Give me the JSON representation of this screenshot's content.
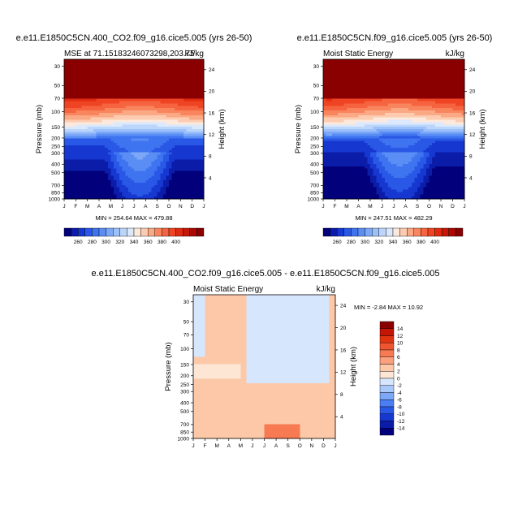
{
  "chart_data": [
    {
      "type": "heatmap",
      "title": "e.e11.E1850C5CN.400_CO2.f09_g16.cice5.005 (yrs 26-50)",
      "left_subtitle": "MSE at 71.15183246073298,203.75",
      "right_subtitle": "kJ/kg",
      "ylabel": "Pressure (mb)",
      "ylabel_right": "Height (km)",
      "x_ticks": [
        "J",
        "F",
        "M",
        "A",
        "M",
        "J",
        "J",
        "A",
        "S",
        "O",
        "N",
        "D",
        "J"
      ],
      "y_ticks": [
        "30",
        "50",
        "70",
        "100",
        "150",
        "200",
        "250",
        "300",
        "400",
        "500",
        "700",
        "850",
        "1000"
      ],
      "y_ticks_right": [
        "24",
        "20",
        "16",
        "12",
        "8",
        "4"
      ],
      "minmax_label": "MIN = 254.64 MAX = 479.88",
      "min": 254.64,
      "max": 479.88,
      "colorbar_labels": [
        "260",
        "280",
        "300",
        "320",
        "340",
        "360",
        "380",
        "400"
      ],
      "colorbar_orientation": "horizontal"
    },
    {
      "type": "heatmap",
      "title": "e.e11.E1850C5CN.f09_g16.cice5.005 (yrs 26-50)",
      "left_subtitle": "Moist Static Energy",
      "right_subtitle": "kJ/kg",
      "ylabel": "Pressure (mb)",
      "ylabel_right": "Height (km)",
      "x_ticks": [
        "J",
        "F",
        "M",
        "A",
        "M",
        "J",
        "J",
        "A",
        "S",
        "O",
        "N",
        "D",
        "J"
      ],
      "y_ticks": [
        "30",
        "50",
        "70",
        "100",
        "150",
        "200",
        "250",
        "300",
        "400",
        "500",
        "700",
        "850",
        "1000"
      ],
      "y_ticks_right": [
        "24",
        "20",
        "16",
        "12",
        "8",
        "4"
      ],
      "minmax_label": "MIN = 247.51 MAX = 482.29",
      "min": 247.51,
      "max": 482.29,
      "colorbar_labels": [
        "260",
        "280",
        "300",
        "320",
        "340",
        "360",
        "380",
        "400"
      ],
      "colorbar_orientation": "horizontal"
    },
    {
      "type": "heatmap",
      "title": "e.e11.E1850C5CN.400_CO2.f09_g16.cice5.005 - e.e11.E1850C5CN.f09_g16.cice5.005",
      "left_subtitle": "Moist Static Energy",
      "right_subtitle": "kJ/kg",
      "ylabel": "Pressure (mb)",
      "ylabel_right": "Height (km)",
      "x_ticks": [
        "J",
        "F",
        "M",
        "A",
        "M",
        "J",
        "J",
        "A",
        "S",
        "O",
        "N",
        "D",
        "J"
      ],
      "y_ticks": [
        "30",
        "50",
        "70",
        "100",
        "150",
        "200",
        "250",
        "300",
        "400",
        "500",
        "700",
        "850",
        "1000"
      ],
      "y_ticks_right": [
        "24",
        "20",
        "16",
        "12",
        "8",
        "4"
      ],
      "minmax_label": "MIN =  -2.84 MAX =  10.92",
      "min": -2.84,
      "max": 10.92,
      "colorbar_labels": [
        "14",
        "12",
        "10",
        "8",
        "6",
        "4",
        "2",
        "0",
        "-2",
        "-4",
        "-6",
        "-8",
        "-10",
        "-12",
        "-14"
      ],
      "colorbar_orientation": "vertical"
    }
  ],
  "colors": {
    "abs_scale": [
      "#02007a",
      "#0a1ca8",
      "#1638d0",
      "#2a58e6",
      "#3f74f0",
      "#5b8ef4",
      "#7ca8f7",
      "#9cc0f9",
      "#bcd6fb",
      "#dbe9fd",
      "#fde8dc",
      "#fccbb0",
      "#fba884",
      "#f9855f",
      "#f5633f",
      "#ee4424",
      "#e02a10",
      "#c81706",
      "#aa0902",
      "#8a0000"
    ],
    "anom_scale": [
      "#02007a",
      "#0a1ca8",
      "#1638d0",
      "#2a58e6",
      "#4a7ef2",
      "#7ca8f7",
      "#a8c8fa",
      "#d6e6fd",
      "#fde6d4",
      "#fcc8a8",
      "#fba07c",
      "#f77a52",
      "#ef5530",
      "#e0330f",
      "#c51505",
      "#8a0000"
    ]
  }
}
